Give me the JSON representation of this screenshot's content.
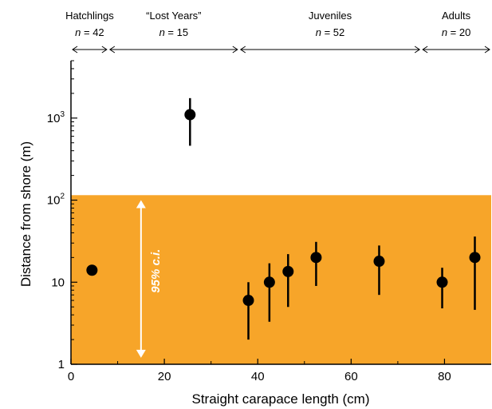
{
  "chart_data": {
    "type": "scatter",
    "xlabel": "Straight carapace length (cm)",
    "ylabel": "Distance from shore (m)",
    "xlim": [
      0,
      90
    ],
    "ylim": [
      1,
      5000
    ],
    "yscale": "log",
    "x_ticks": [
      0,
      20,
      40,
      60,
      80
    ],
    "y_ticks": [
      {
        "value": 1,
        "base": "1",
        "exp": ""
      },
      {
        "value": 10,
        "base": "10",
        "exp": ""
      },
      {
        "value": 100,
        "base": "10",
        "exp": "2"
      },
      {
        "value": 1000,
        "base": "10",
        "exp": "3"
      }
    ],
    "shaded_region": {
      "y_max": 115,
      "color": "#F7A529"
    },
    "ci_annotation": {
      "text": "95% c.i.",
      "x": 15,
      "y_range": [
        1.2,
        100
      ],
      "color": "#ffffff"
    },
    "stages": [
      {
        "name": "Hatchlings",
        "n_label": "n = 42",
        "x_range": [
          0,
          8
        ]
      },
      {
        "name": "“Lost Years”",
        "n_label": "n = 15",
        "x_range": [
          8,
          36
        ]
      },
      {
        "name": "Juveniles",
        "n_label": "n = 52",
        "x_range": [
          36,
          75
        ]
      },
      {
        "name": "Adults",
        "n_label": "n = 20",
        "x_range": [
          75,
          90
        ]
      }
    ],
    "points": [
      {
        "x": 4.5,
        "y": 14,
        "lower": null,
        "upper": null
      },
      {
        "x": 25.5,
        "y": 1100,
        "lower": 460,
        "upper": 1750
      },
      {
        "x": 38,
        "y": 6,
        "lower": 2,
        "upper": 10
      },
      {
        "x": 42.5,
        "y": 10,
        "lower": 3.3,
        "upper": 17
      },
      {
        "x": 46.5,
        "y": 13.5,
        "lower": 5,
        "upper": 22
      },
      {
        "x": 52.5,
        "y": 20,
        "lower": 9,
        "upper": 31
      },
      {
        "x": 66,
        "y": 18,
        "lower": 7,
        "upper": 28
      },
      {
        "x": 79.5,
        "y": 10,
        "lower": 4.8,
        "upper": 15
      },
      {
        "x": 86.5,
        "y": 20,
        "lower": 4.6,
        "upper": 36
      }
    ],
    "colors": {
      "points": "#000000",
      "axes": "#000000",
      "region": "#F7A529"
    }
  }
}
